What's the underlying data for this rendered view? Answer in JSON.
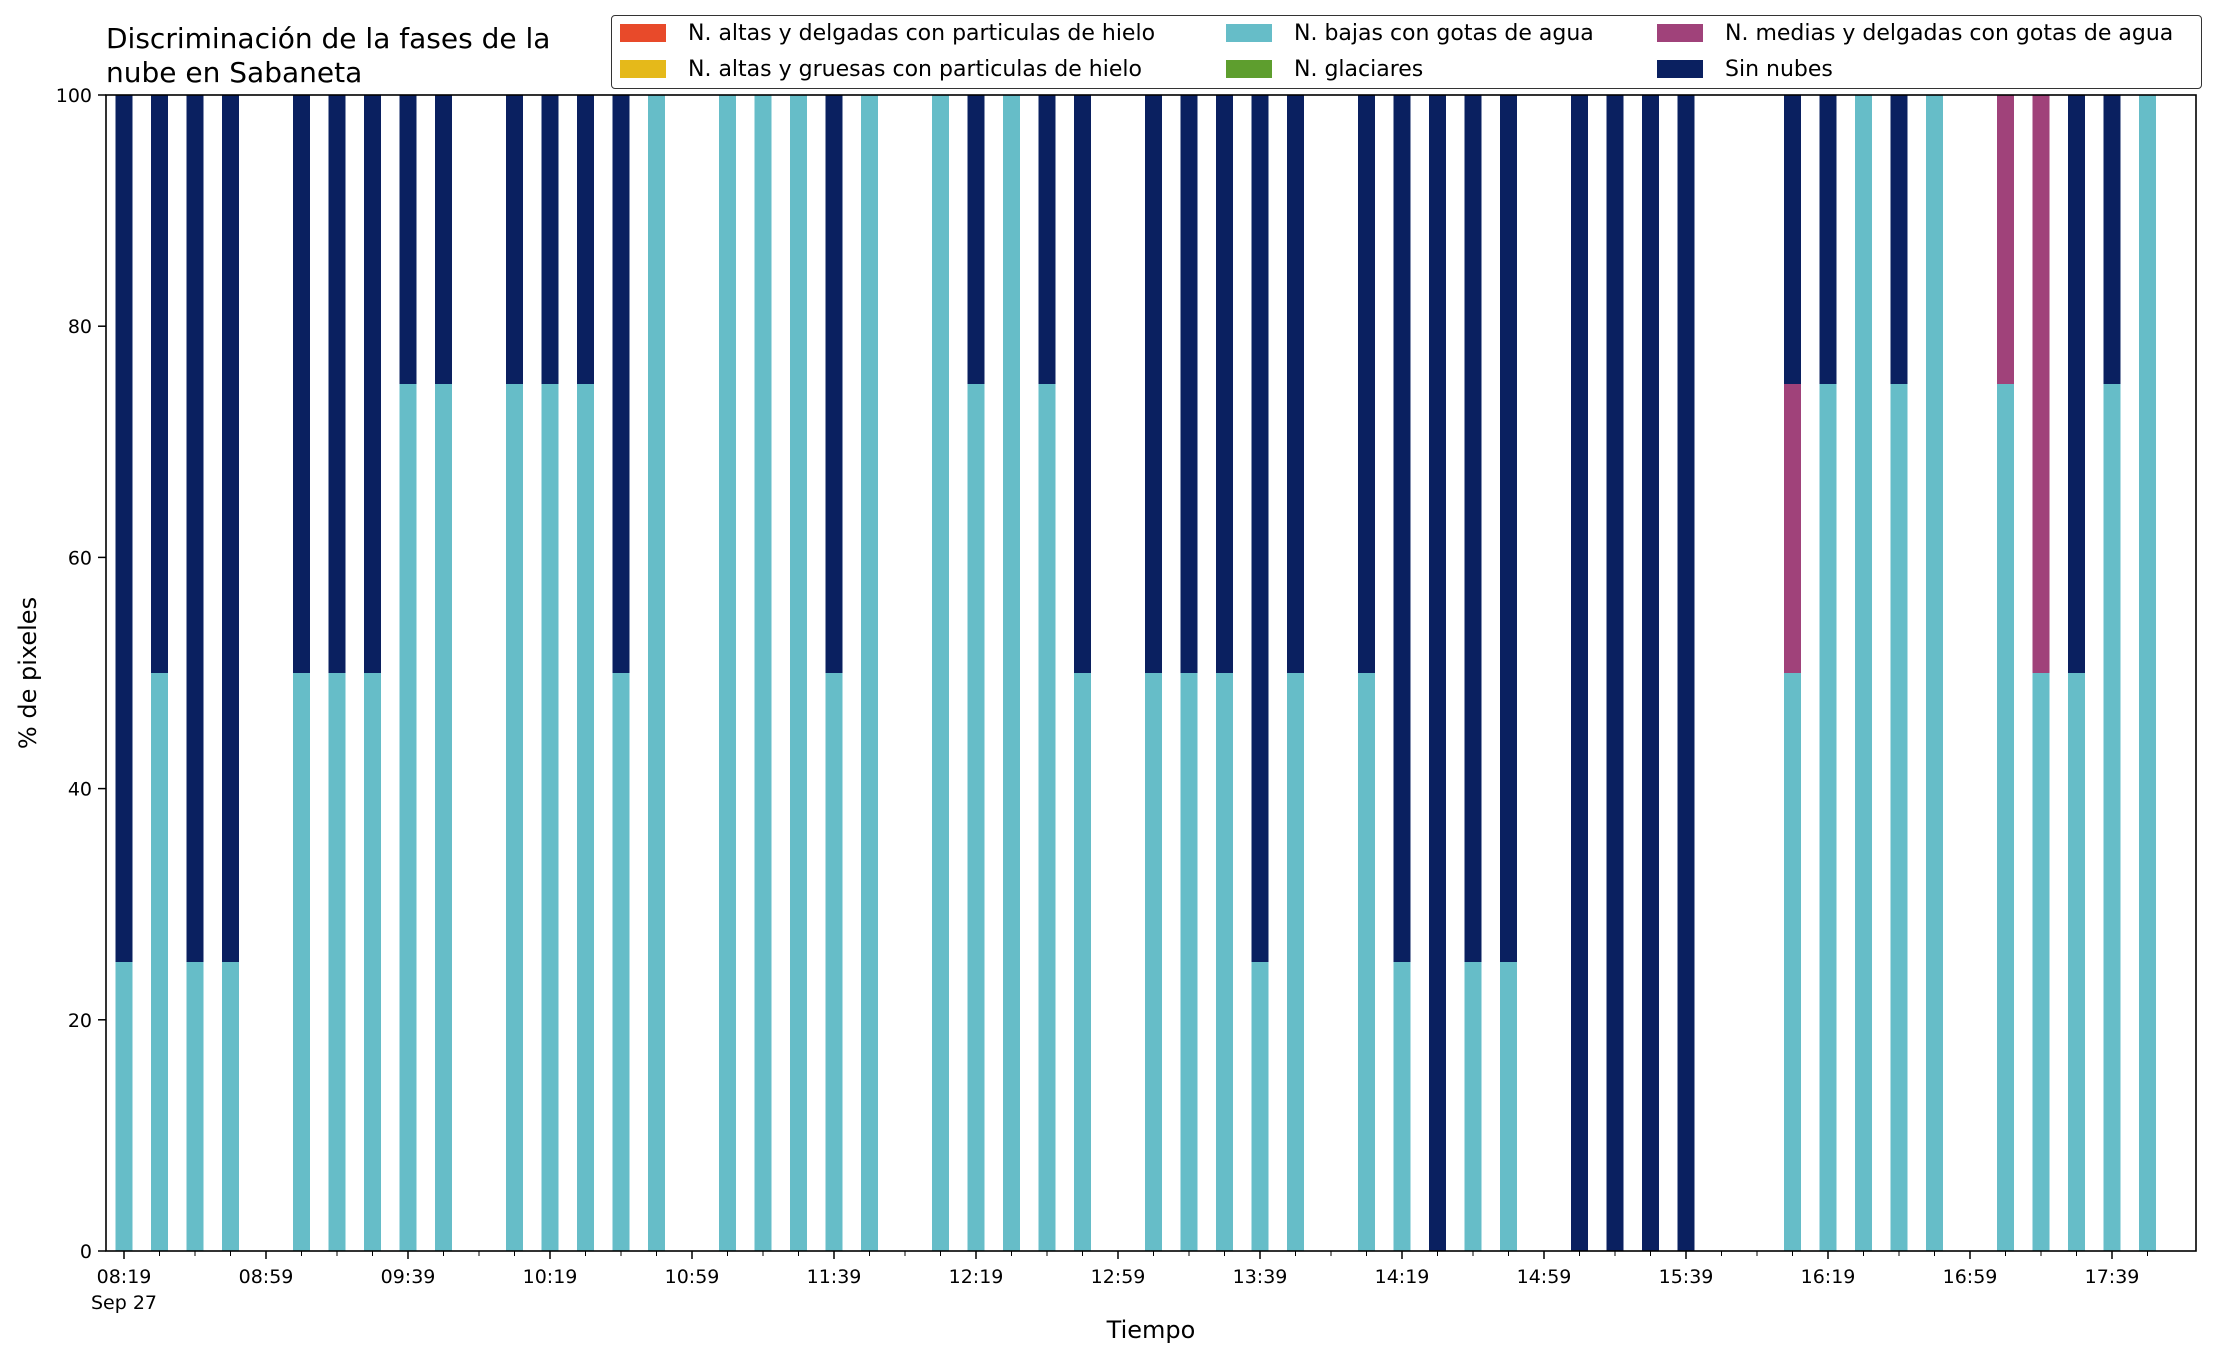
{
  "chart_data": {
    "type": "bar",
    "stacked": true,
    "title_lines": [
      "Discriminación de la fases de la",
      "nube en Sabaneta"
    ],
    "xlabel": "Tiempo",
    "ylabel": "% de pixeles",
    "ylim": [
      0,
      100
    ],
    "yticks": [
      0,
      20,
      40,
      60,
      80,
      100
    ],
    "xtick_labels": [
      "08:19",
      "08:59",
      "09:39",
      "10:19",
      "10:59",
      "11:39",
      "12:19",
      "12:59",
      "13:39",
      "14:19",
      "14:59",
      "15:39",
      "16:19",
      "16:59",
      "17:39"
    ],
    "xtick_sublabel": "Sep 27",
    "grid": false,
    "legend_position": "top-right",
    "x": [
      "08:19",
      "08:29",
      "08:39",
      "08:49",
      "08:59",
      "09:09",
      "09:19",
      "09:29",
      "09:39",
      "09:49",
      "09:59",
      "10:09",
      "10:19",
      "10:29",
      "10:39",
      "10:49",
      "10:59",
      "11:09",
      "11:19",
      "11:29",
      "11:39",
      "11:49",
      "11:59",
      "12:09",
      "12:19",
      "12:29",
      "12:39",
      "12:49",
      "12:59",
      "13:09",
      "13:19",
      "13:29",
      "13:39",
      "13:49",
      "13:59",
      "14:09",
      "14:19",
      "14:29",
      "14:39",
      "14:49",
      "14:59",
      "15:09",
      "15:19",
      "15:29",
      "15:39",
      "15:49",
      "15:59",
      "16:09",
      "16:19",
      "16:29",
      "16:39",
      "16:49",
      "16:59",
      "17:09",
      "17:19",
      "17:29",
      "17:39",
      "17:49"
    ],
    "series": [
      {
        "name": "N. altas y delgadas con particulas de hielo",
        "color": "#e84a2a",
        "values": [
          0,
          0,
          0,
          0,
          null,
          0,
          0,
          0,
          0,
          0,
          null,
          0,
          0,
          0,
          0,
          0,
          null,
          0,
          0,
          0,
          0,
          0,
          null,
          0,
          0,
          0,
          0,
          0,
          null,
          0,
          0,
          0,
          0,
          0,
          null,
          0,
          0,
          0,
          0,
          0,
          null,
          0,
          0,
          0,
          0,
          null,
          null,
          0,
          0,
          0,
          0,
          0,
          null,
          0,
          0,
          0,
          0,
          0
        ]
      },
      {
        "name": "N. altas y gruesas con particulas de hielo",
        "color": "#e5b91a",
        "values": [
          0,
          0,
          0,
          0,
          null,
          0,
          0,
          0,
          0,
          0,
          null,
          0,
          0,
          0,
          0,
          0,
          null,
          0,
          0,
          0,
          0,
          0,
          null,
          0,
          0,
          0,
          0,
          0,
          null,
          0,
          0,
          0,
          0,
          0,
          null,
          0,
          0,
          0,
          0,
          0,
          null,
          0,
          0,
          0,
          0,
          null,
          null,
          0,
          0,
          0,
          0,
          0,
          null,
          0,
          0,
          0,
          0,
          0
        ]
      },
      {
        "name": "N. bajas con gotas de agua",
        "color": "#66bdc8",
        "values": [
          25,
          50,
          25,
          25,
          null,
          50,
          50,
          50,
          75,
          75,
          null,
          75,
          75,
          75,
          50,
          100,
          null,
          100,
          100,
          100,
          50,
          100,
          null,
          100,
          75,
          100,
          75,
          50,
          null,
          50,
          50,
          50,
          25,
          50,
          null,
          50,
          25,
          0,
          25,
          25,
          null,
          0,
          0,
          0,
          0,
          null,
          null,
          50,
          75,
          100,
          75,
          100,
          null,
          75,
          50,
          50,
          75,
          100
        ]
      },
      {
        "name": "N. glaciares",
        "color": "#5e9e2e",
        "values": [
          0,
          0,
          0,
          0,
          null,
          0,
          0,
          0,
          0,
          0,
          null,
          0,
          0,
          0,
          0,
          0,
          null,
          0,
          0,
          0,
          0,
          0,
          null,
          0,
          0,
          0,
          0,
          0,
          null,
          0,
          0,
          0,
          0,
          0,
          null,
          0,
          0,
          0,
          0,
          0,
          null,
          0,
          0,
          0,
          0,
          null,
          null,
          0,
          0,
          0,
          0,
          0,
          null,
          0,
          0,
          0,
          0,
          0
        ]
      },
      {
        "name": "N. medias y delgadas con gotas de agua",
        "color": "#a0427a",
        "values": [
          0,
          0,
          0,
          0,
          null,
          0,
          0,
          0,
          0,
          0,
          null,
          0,
          0,
          0,
          0,
          0,
          null,
          0,
          0,
          0,
          0,
          0,
          null,
          0,
          0,
          0,
          0,
          0,
          null,
          0,
          0,
          0,
          0,
          0,
          null,
          0,
          0,
          0,
          0,
          0,
          null,
          0,
          0,
          0,
          0,
          null,
          null,
          25,
          0,
          0,
          0,
          0,
          null,
          25,
          50,
          0,
          0,
          0
        ]
      },
      {
        "name": "Sin nubes",
        "color": "#0a2060",
        "values": [
          75,
          50,
          75,
          75,
          null,
          50,
          50,
          50,
          25,
          25,
          null,
          25,
          25,
          25,
          50,
          0,
          null,
          0,
          0,
          0,
          50,
          0,
          null,
          0,
          25,
          0,
          25,
          50,
          null,
          50,
          50,
          50,
          75,
          50,
          null,
          50,
          75,
          100,
          75,
          75,
          null,
          100,
          100,
          100,
          100,
          null,
          null,
          25,
          25,
          0,
          25,
          0,
          null,
          0,
          0,
          50,
          25,
          0
        ]
      }
    ]
  }
}
